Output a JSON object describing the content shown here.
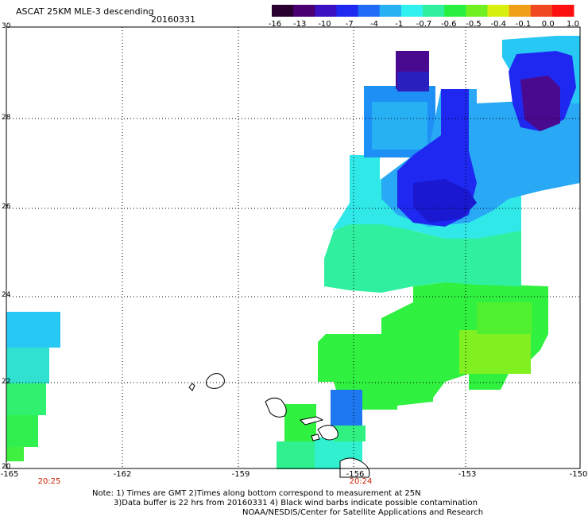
{
  "header": {
    "title": "ASCAT 25KM MLE-3 descending",
    "date": "20160331"
  },
  "colorbar": {
    "labels": [
      "-16",
      "-13",
      "-10",
      "-7",
      "-4",
      "-1",
      "-0.7",
      "-0.6",
      "-0.5",
      "-0.4",
      "-0.1",
      "0.0",
      "1.0"
    ],
    "colors": [
      "#2a0030",
      "#4a0070",
      "#3a10c0",
      "#1f28f0",
      "#1e6cf5",
      "#28b0f5",
      "#30f0f0",
      "#30f0a0",
      "#28f040",
      "#70f020",
      "#d8f010",
      "#f0a018",
      "#f04820",
      "#ff1010"
    ]
  },
  "axes": {
    "y_ticks": [
      "30",
      "28",
      "26",
      "24",
      "22",
      "20"
    ],
    "x_ticks": [
      "-165",
      "-162",
      "-159",
      "-156",
      "-153",
      "-150"
    ],
    "lat_range": [
      20,
      30
    ],
    "lon_range": [
      -165,
      -150
    ]
  },
  "times": [
    "20:25",
    "20:24"
  ],
  "notes": [
    "Note: 1) Times are GMT 2)Times along bottom correspond to measurement at 25N",
    "3)Data buffer is 22 hrs from 20160331 4) Black wind barbs indicate possible contamination",
    "NOAA/NESDIS/Center for Satellite Applications and Research"
  ]
}
